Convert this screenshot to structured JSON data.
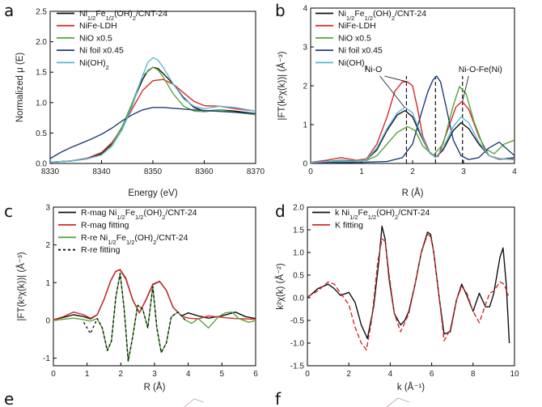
{
  "colors": {
    "black": "#111111",
    "red": "#d42a2a",
    "green": "#56a63a",
    "navy": "#1f3f78",
    "cyan": "#5fb9d9"
  },
  "panel_letters": [
    "a",
    "b",
    "c",
    "d",
    "e",
    "f"
  ],
  "chart_data": [
    {
      "panel": "a",
      "type": "line",
      "xlabel": "Energy (eV)",
      "ylabel": "Normalized μ (E)",
      "xlim": [
        8330,
        8370
      ],
      "ylim": [
        0,
        2.5
      ],
      "xticks": [
        "8330",
        "8340",
        "8350",
        "8360",
        "8370"
      ],
      "yticks": [
        "0.0",
        "0.5",
        "1.0",
        "1.5",
        "2.0",
        "2.5"
      ],
      "legend": [
        {
          "pre": "Ni",
          "sub1": "1/2",
          "mid": "Fe",
          "sub2": "1/2",
          "mid2": "(OH)",
          "sub3": "2",
          "post": "/CNT-24",
          "color": "black"
        },
        {
          "pre": "NiFe-LDH",
          "color": "red"
        },
        {
          "pre": "NiO x0.5",
          "color": "green"
        },
        {
          "pre": "Ni foil x0.45",
          "color": "navy"
        },
        {
          "pre": "Ni(OH)",
          "sub1": "2",
          "color": "cyan"
        }
      ],
      "series": [
        {
          "name": "Ni1/2Fe1/2(OH)2/CNT-24",
          "color": "black",
          "x": [
            8330,
            8334,
            8337,
            8340,
            8342,
            8344,
            8346,
            8348,
            8349,
            8350,
            8351,
            8352,
            8354,
            8356,
            8358,
            8360,
            8363,
            8366,
            8370
          ],
          "y": [
            0.02,
            0.04,
            0.08,
            0.16,
            0.32,
            0.6,
            0.98,
            1.38,
            1.52,
            1.58,
            1.56,
            1.48,
            1.3,
            1.08,
            0.92,
            0.86,
            0.88,
            0.86,
            0.82
          ]
        },
        {
          "name": "NiFe-LDH",
          "color": "red",
          "x": [
            8330,
            8334,
            8337,
            8340,
            8342,
            8344,
            8346,
            8348,
            8350,
            8352,
            8354,
            8356,
            8358,
            8360,
            8363,
            8366,
            8370
          ],
          "y": [
            0.02,
            0.04,
            0.08,
            0.18,
            0.34,
            0.58,
            0.9,
            1.2,
            1.36,
            1.38,
            1.3,
            1.16,
            1.02,
            0.95,
            0.94,
            0.9,
            0.86
          ]
        },
        {
          "name": "NiO x0.5",
          "color": "green",
          "x": [
            8330,
            8334,
            8337,
            8340,
            8342,
            8344,
            8346,
            8348,
            8350,
            8351,
            8352,
            8354,
            8356,
            8358,
            8360,
            8363,
            8366,
            8370
          ],
          "y": [
            0.02,
            0.04,
            0.07,
            0.14,
            0.3,
            0.6,
            1.0,
            1.44,
            1.58,
            1.54,
            1.42,
            1.14,
            0.94,
            0.86,
            0.85,
            0.88,
            0.84,
            0.8
          ]
        },
        {
          "name": "Ni foil x0.45",
          "color": "navy",
          "x": [
            8330,
            8332,
            8334,
            8336,
            8338,
            8340,
            8342,
            8344,
            8346,
            8348,
            8350,
            8352,
            8355,
            8358,
            8362,
            8366,
            8370
          ],
          "y": [
            0.08,
            0.18,
            0.26,
            0.33,
            0.4,
            0.48,
            0.58,
            0.7,
            0.8,
            0.88,
            0.92,
            0.92,
            0.9,
            0.88,
            0.86,
            0.84,
            0.82
          ]
        },
        {
          "name": "Ni(OH)2",
          "color": "cyan",
          "x": [
            8330,
            8334,
            8337,
            8340,
            8342,
            8344,
            8346,
            8348,
            8349,
            8350,
            8351,
            8352,
            8354,
            8356,
            8358,
            8360,
            8363,
            8366,
            8370
          ],
          "y": [
            0.02,
            0.04,
            0.07,
            0.14,
            0.28,
            0.55,
            0.95,
            1.44,
            1.66,
            1.74,
            1.7,
            1.58,
            1.3,
            1.06,
            0.94,
            0.9,
            0.94,
            0.92,
            0.86
          ]
        }
      ]
    },
    {
      "panel": "b",
      "type": "line",
      "xlabel": "R (Å)",
      "ylabel": "|FT(k²χ(k))| (Å⁻³)",
      "xlim": [
        0,
        4
      ],
      "ylim": [
        0,
        4
      ],
      "xticks": [
        "0",
        "1",
        "2",
        "3",
        "4"
      ],
      "yticks": [
        "0",
        "1",
        "2",
        "3",
        "4"
      ],
      "legend": [
        {
          "pre": "Ni",
          "sub1": "1/2",
          "mid": "Fe",
          "sub2": "1/2",
          "mid2": "(OH)",
          "sub3": "2",
          "post": "/CNT-24",
          "color": "black"
        },
        {
          "pre": "NiFe-LDH",
          "color": "red"
        },
        {
          "pre": "NiO x0.5",
          "color": "green"
        },
        {
          "pre": "Ni foil x0.45",
          "color": "navy"
        },
        {
          "pre": "Ni(OH)",
          "sub1": "2",
          "color": "cyan"
        }
      ],
      "annotations": [
        "Ni-O",
        "Ni-O-Fe(Ni)"
      ],
      "dashed_x": [
        1.88,
        2.45,
        2.98
      ],
      "series": [
        {
          "name": "Ni1/2Fe1/2(OH)2/CNT-24",
          "color": "black",
          "x": [
            0,
            0.3,
            0.6,
            0.9,
            1.1,
            1.3,
            1.5,
            1.7,
            1.85,
            2.0,
            2.15,
            2.3,
            2.45,
            2.6,
            2.8,
            2.95,
            3.1,
            3.3,
            3.5,
            3.7,
            4.0
          ],
          "y": [
            0.02,
            0.05,
            0.08,
            0.06,
            0.1,
            0.35,
            0.85,
            1.25,
            1.36,
            1.2,
            0.75,
            0.35,
            0.15,
            0.35,
            0.85,
            1.05,
            0.9,
            0.5,
            0.2,
            0.1,
            0.15
          ]
        },
        {
          "name": "NiFe-LDH",
          "color": "red",
          "x": [
            0,
            0.3,
            0.6,
            0.9,
            1.1,
            1.3,
            1.5,
            1.65,
            1.8,
            1.9,
            2.0,
            2.1,
            2.2,
            2.35,
            2.5,
            2.7,
            2.85,
            2.97,
            3.1,
            3.3,
            3.5,
            3.7,
            4.0
          ],
          "y": [
            0.03,
            0.08,
            0.15,
            0.08,
            0.12,
            0.5,
            1.2,
            1.85,
            2.1,
            2.1,
            2.0,
            1.4,
            0.7,
            0.25,
            0.18,
            0.9,
            1.45,
            1.6,
            1.4,
            0.7,
            0.2,
            0.12,
            0.1
          ]
        },
        {
          "name": "NiO x0.5",
          "color": "green",
          "x": [
            0,
            0.4,
            0.8,
            1.1,
            1.3,
            1.5,
            1.7,
            1.9,
            2.05,
            2.2,
            2.4,
            2.6,
            2.8,
            2.92,
            3.05,
            3.2,
            3.4,
            3.6,
            3.8,
            4.0
          ],
          "y": [
            0.02,
            0.04,
            0.06,
            0.08,
            0.2,
            0.5,
            0.8,
            0.95,
            0.85,
            0.45,
            0.2,
            0.5,
            1.5,
            1.98,
            1.8,
            1.1,
            0.4,
            0.25,
            0.5,
            0.6
          ]
        },
        {
          "name": "Ni foil x0.45",
          "color": "navy",
          "x": [
            0,
            0.5,
            1.0,
            1.5,
            1.8,
            2.0,
            2.15,
            2.3,
            2.4,
            2.47,
            2.55,
            2.65,
            2.8,
            2.95,
            3.1,
            3.3,
            3.5,
            3.7,
            4.0
          ],
          "y": [
            0.01,
            0.02,
            0.03,
            0.05,
            0.15,
            0.5,
            1.2,
            1.85,
            2.15,
            2.25,
            2.1,
            1.5,
            0.6,
            0.2,
            0.1,
            0.15,
            0.4,
            0.55,
            0.2
          ]
        },
        {
          "name": "Ni(OH)2",
          "color": "cyan",
          "x": [
            0,
            0.3,
            0.6,
            0.9,
            1.1,
            1.3,
            1.5,
            1.7,
            1.85,
            2.0,
            2.15,
            2.3,
            2.45,
            2.6,
            2.8,
            2.95,
            3.1,
            3.3,
            3.5,
            3.7,
            4.0
          ],
          "y": [
            0.02,
            0.05,
            0.07,
            0.05,
            0.1,
            0.4,
            0.9,
            1.3,
            1.45,
            1.3,
            0.8,
            0.35,
            0.15,
            0.4,
            0.95,
            1.2,
            1.05,
            0.55,
            0.2,
            0.1,
            0.12
          ]
        }
      ]
    },
    {
      "panel": "c",
      "type": "line",
      "xlabel": "R (Å)",
      "ylabel": "|FT(k²χ(k))| (Å⁻³)",
      "xlim": [
        0,
        6
      ],
      "ylim": [
        -1.2,
        3
      ],
      "xticks": [
        "0",
        "1",
        "2",
        "3",
        "4",
        "5",
        "6"
      ],
      "yticks": [
        "-1",
        "0",
        "1",
        "2",
        "3"
      ],
      "legend": [
        {
          "pre": "R-mag Ni",
          "sub1": "1/2",
          "mid": "Fe",
          "sub2": "1/2",
          "mid2": "(OH)",
          "sub3": "2",
          "post": "/CNT-24",
          "color": "black"
        },
        {
          "pre": "R-mag fitting",
          "color": "red"
        },
        {
          "pre": "R-re Ni",
          "sub1": "1/2",
          "mid": "Fe",
          "sub2": "1/2",
          "mid2": "(OH)",
          "sub3": "2",
          "post": "/CNT-24",
          "color": "green"
        },
        {
          "pre": "R-re fitting",
          "color": "black",
          "dashed": true
        }
      ],
      "series": [
        {
          "name": "R-mag Ni1/2Fe1/2(OH)2/CNT-24",
          "color": "black",
          "x": [
            0,
            0.3,
            0.6,
            0.9,
            1.1,
            1.3,
            1.5,
            1.7,
            1.85,
            1.98,
            2.15,
            2.35,
            2.55,
            2.75,
            2.95,
            3.15,
            3.35,
            3.55,
            3.8,
            4.0,
            4.3,
            4.6,
            5.0,
            5.4,
            5.7,
            6.0
          ],
          "y": [
            0.02,
            0.08,
            0.15,
            0.1,
            0.04,
            0.15,
            0.55,
            1.05,
            1.3,
            1.34,
            1.1,
            0.55,
            0.2,
            0.55,
            0.95,
            1.03,
            0.8,
            0.35,
            0.12,
            0.2,
            0.12,
            0.06,
            0.12,
            0.22,
            0.1,
            0.05
          ]
        },
        {
          "name": "R-mag fitting",
          "color": "red",
          "x": [
            0,
            0.3,
            0.6,
            0.9,
            1.1,
            1.3,
            1.5,
            1.7,
            1.85,
            1.98,
            2.15,
            2.35,
            2.55,
            2.75,
            2.95,
            3.15,
            3.35,
            3.55,
            3.8,
            4.0,
            4.3,
            4.6,
            5.0,
            5.4,
            5.7,
            6.0
          ],
          "y": [
            0.02,
            0.1,
            0.22,
            0.15,
            0.06,
            0.15,
            0.55,
            1.05,
            1.3,
            1.35,
            1.12,
            0.56,
            0.2,
            0.56,
            0.96,
            1.04,
            0.8,
            0.35,
            0.12,
            0.06,
            0.04,
            0.12,
            0.08,
            0.05,
            0.04,
            0.03
          ]
        },
        {
          "name": "R-re Ni1/2Fe1/2(OH)2/CNT-24",
          "color": "green",
          "x": [
            0,
            0.3,
            0.6,
            0.9,
            1.1,
            1.3,
            1.45,
            1.6,
            1.72,
            1.85,
            1.98,
            2.1,
            2.22,
            2.35,
            2.5,
            2.65,
            2.8,
            2.95,
            3.07,
            3.2,
            3.35,
            3.5,
            3.7,
            3.9,
            4.1,
            4.3,
            4.6,
            4.9,
            5.1,
            5.3,
            5.5,
            5.8,
            6.0
          ],
          "y": [
            0,
            0.03,
            0.06,
            0.02,
            -0.02,
            0.05,
            -0.2,
            -0.8,
            -0.55,
            0.6,
            1.25,
            0.3,
            -1.08,
            -0.45,
            0.4,
            0.3,
            -0.2,
            0.9,
            -0.2,
            -0.85,
            -0.6,
            0.1,
            0.22,
            0.02,
            -0.08,
            0.05,
            -0.2,
            0.1,
            0.2,
            0.22,
            0.05,
            -0.05,
            0
          ]
        },
        {
          "name": "R-re fitting",
          "color": "black",
          "dashed": true,
          "x": [
            0.9,
            1.1,
            1.3,
            1.45,
            1.6,
            1.72,
            1.85,
            1.98,
            2.1,
            2.22,
            2.35,
            2.5,
            2.65,
            2.8,
            2.95,
            3.07,
            3.2,
            3.35,
            3.5,
            3.7,
            3.9
          ],
          "y": [
            -0.05,
            -0.35,
            0.05,
            -0.2,
            -0.8,
            -0.55,
            0.6,
            1.25,
            0.3,
            -1.08,
            -0.45,
            0.4,
            0.3,
            -0.2,
            0.9,
            -0.2,
            -0.85,
            -0.6,
            0.1,
            0.22,
            0.02
          ]
        }
      ]
    },
    {
      "panel": "d",
      "type": "line",
      "xlabel": "k (Å⁻¹)",
      "ylabel": "k²χ(k) (Å⁻²)",
      "xlim": [
        0,
        10
      ],
      "ylim": [
        -1.5,
        2.0
      ],
      "xticks": [
        "0",
        "2",
        "4",
        "6",
        "8",
        "10"
      ],
      "yticks": [
        "-1.5",
        "-1.0",
        "-0.5",
        "0.0",
        "0.5",
        "1.0",
        "1.5",
        "2.0"
      ],
      "legend": [
        {
          "pre": "k Ni",
          "sub1": "1/2",
          "mid": "Fe",
          "sub2": "1/2",
          "mid2": "(OH)",
          "sub3": "2",
          "post": "/CNT-24",
          "color": "black"
        },
        {
          "pre": "K fitting",
          "color": "red"
        }
      ],
      "series": [
        {
          "name": "k Ni1/2Fe1/2(OH)2/CNT-24",
          "color": "black",
          "x": [
            0,
            0.5,
            1.0,
            1.3,
            1.6,
            2.0,
            2.3,
            2.6,
            2.9,
            3.2,
            3.45,
            3.6,
            3.75,
            3.95,
            4.2,
            4.5,
            4.7,
            4.9,
            5.2,
            5.5,
            5.8,
            5.95,
            6.1,
            6.35,
            6.6,
            6.9,
            7.2,
            7.45,
            7.7,
            8.0,
            8.3,
            8.6,
            8.8,
            9.0,
            9.3,
            9.45,
            9.6,
            9.75
          ],
          "y": [
            0,
            0.2,
            0.3,
            0.2,
            0.05,
            0.12,
            -0.1,
            -0.6,
            -0.9,
            -0.2,
            0.8,
            1.58,
            1.3,
            0.4,
            -0.35,
            -0.6,
            -0.5,
            -0.3,
            0.3,
            1.0,
            1.45,
            1.4,
            1.0,
            0.05,
            -0.8,
            -0.75,
            -0.05,
            0.3,
            0.05,
            -0.3,
            0.1,
            -0.2,
            -0.2,
            0.1,
            0.9,
            1.1,
            0.3,
            -1.0
          ]
        },
        {
          "name": "K fitting",
          "color": "red",
          "dashed": true,
          "x": [
            0,
            0.5,
            1.0,
            1.3,
            1.6,
            2.0,
            2.3,
            2.6,
            2.85,
            3.1,
            3.4,
            3.6,
            3.75,
            3.95,
            4.2,
            4.5,
            4.7,
            4.9,
            5.2,
            5.5,
            5.8,
            5.95,
            6.1,
            6.35,
            6.6,
            6.9,
            7.2,
            7.45,
            7.7,
            8.0,
            8.3,
            8.6,
            8.8,
            9.0,
            9.3,
            9.5,
            9.7
          ],
          "y": [
            0.02,
            0.15,
            0.35,
            0.3,
            0.1,
            -0.15,
            -0.65,
            -1.0,
            -1.15,
            -0.5,
            0.8,
            1.3,
            1.25,
            0.5,
            -0.35,
            -0.75,
            -0.55,
            -0.35,
            0.3,
            1.0,
            1.4,
            1.35,
            1.0,
            0.05,
            -0.95,
            -0.7,
            -0.05,
            0.25,
            0.1,
            -0.3,
            -0.55,
            -0.15,
            0.1,
            0.15,
            0.35,
            0.3,
            0.05
          ]
        }
      ]
    }
  ]
}
